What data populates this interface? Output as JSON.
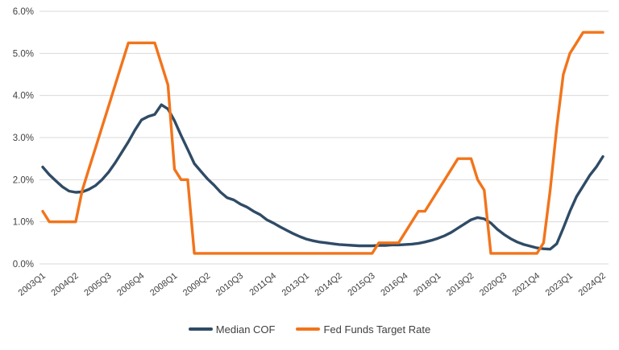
{
  "chart_data": {
    "type": "line",
    "title": "",
    "xlabel": "",
    "ylabel": "",
    "ylim": [
      0,
      6
    ],
    "y_ticks": [
      "0.0%",
      "1.0%",
      "2.0%",
      "3.0%",
      "4.0%",
      "5.0%",
      "6.0%"
    ],
    "x_tick_step": 5,
    "x_tick_labels": [
      "2003Q1",
      "2004Q2",
      "2005Q3",
      "2006Q4",
      "2008Q1",
      "2009Q2",
      "2010Q3",
      "2011Q4",
      "2013Q1",
      "2014Q2",
      "2015Q3",
      "2016Q4",
      "2018Q1",
      "2019Q2",
      "2020Q3",
      "2021Q4",
      "2023Q1",
      "2024Q2"
    ],
    "x": [
      "2003Q1",
      "2003Q2",
      "2003Q3",
      "2003Q4",
      "2004Q1",
      "2004Q2",
      "2004Q3",
      "2004Q4",
      "2005Q1",
      "2005Q2",
      "2005Q3",
      "2005Q4",
      "2006Q1",
      "2006Q2",
      "2006Q3",
      "2006Q4",
      "2007Q1",
      "2007Q2",
      "2007Q3",
      "2007Q4",
      "2008Q1",
      "2008Q2",
      "2008Q3",
      "2008Q4",
      "2009Q1",
      "2009Q2",
      "2009Q3",
      "2009Q4",
      "2010Q1",
      "2010Q2",
      "2010Q3",
      "2010Q4",
      "2011Q1",
      "2011Q2",
      "2011Q3",
      "2011Q4",
      "2012Q1",
      "2012Q2",
      "2012Q3",
      "2012Q4",
      "2013Q1",
      "2013Q2",
      "2013Q3",
      "2013Q4",
      "2014Q1",
      "2014Q2",
      "2014Q3",
      "2014Q4",
      "2015Q1",
      "2015Q2",
      "2015Q3",
      "2015Q4",
      "2016Q1",
      "2016Q2",
      "2016Q3",
      "2016Q4",
      "2017Q1",
      "2017Q2",
      "2017Q3",
      "2017Q4",
      "2018Q1",
      "2018Q2",
      "2018Q3",
      "2018Q4",
      "2019Q1",
      "2019Q2",
      "2019Q3",
      "2019Q4",
      "2020Q1",
      "2020Q2",
      "2020Q3",
      "2020Q4",
      "2021Q1",
      "2021Q2",
      "2021Q3",
      "2021Q4",
      "2022Q1",
      "2022Q2",
      "2022Q3",
      "2022Q4",
      "2023Q1",
      "2023Q2",
      "2023Q3",
      "2023Q4",
      "2024Q1",
      "2024Q2"
    ],
    "series": [
      {
        "name": "Median COF",
        "color": "#2F4B66",
        "values": [
          2.3,
          2.12,
          1.97,
          1.83,
          1.73,
          1.7,
          1.71,
          1.77,
          1.86,
          2.0,
          2.18,
          2.4,
          2.65,
          2.9,
          3.18,
          3.42,
          3.5,
          3.55,
          3.78,
          3.68,
          3.4,
          3.05,
          2.72,
          2.38,
          2.2,
          2.02,
          1.87,
          1.7,
          1.57,
          1.52,
          1.42,
          1.35,
          1.25,
          1.17,
          1.05,
          0.97,
          0.88,
          0.8,
          0.72,
          0.65,
          0.59,
          0.55,
          0.52,
          0.5,
          0.48,
          0.46,
          0.45,
          0.44,
          0.43,
          0.43,
          0.43,
          0.44,
          0.44,
          0.45,
          0.45,
          0.46,
          0.47,
          0.49,
          0.52,
          0.56,
          0.61,
          0.67,
          0.75,
          0.85,
          0.95,
          1.05,
          1.1,
          1.07,
          0.97,
          0.82,
          0.7,
          0.6,
          0.52,
          0.46,
          0.42,
          0.38,
          0.36,
          0.35,
          0.48,
          0.85,
          1.25,
          1.6,
          1.85,
          2.1,
          2.3,
          2.55
        ]
      },
      {
        "name": "Fed Funds Target Rate",
        "color": "#F2741B",
        "values": [
          1.25,
          1.0,
          1.0,
          1.0,
          1.0,
          1.0,
          1.75,
          2.25,
          2.75,
          3.25,
          3.75,
          4.25,
          4.75,
          5.25,
          5.25,
          5.25,
          5.25,
          5.25,
          4.75,
          4.25,
          2.25,
          2.0,
          2.0,
          0.25,
          0.25,
          0.25,
          0.25,
          0.25,
          0.25,
          0.25,
          0.25,
          0.25,
          0.25,
          0.25,
          0.25,
          0.25,
          0.25,
          0.25,
          0.25,
          0.25,
          0.25,
          0.25,
          0.25,
          0.25,
          0.25,
          0.25,
          0.25,
          0.25,
          0.25,
          0.25,
          0.25,
          0.5,
          0.5,
          0.5,
          0.5,
          0.75,
          1.0,
          1.25,
          1.25,
          1.5,
          1.75,
          2.0,
          2.25,
          2.5,
          2.5,
          2.5,
          2.0,
          1.75,
          0.25,
          0.25,
          0.25,
          0.25,
          0.25,
          0.25,
          0.25,
          0.25,
          0.5,
          1.75,
          3.25,
          4.5,
          5.0,
          5.25,
          5.5,
          5.5,
          5.5,
          5.5
        ]
      }
    ],
    "legend_position": "bottom",
    "grid": "horizontal",
    "gridline_color": "#D9D9D9",
    "axis_text_color": "#404040",
    "background": "#FFFFFF"
  }
}
